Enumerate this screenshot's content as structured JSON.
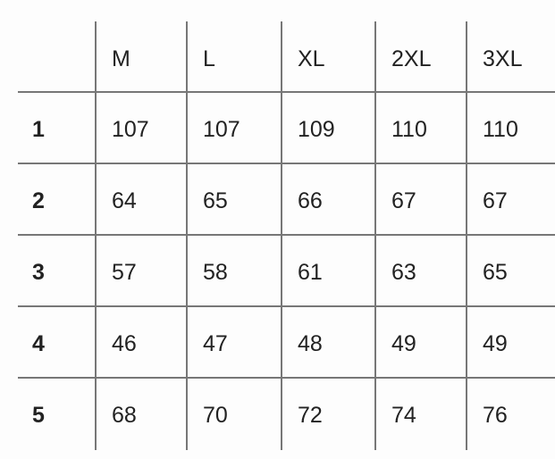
{
  "table": {
    "columns": [
      "M",
      "L",
      "XL",
      "2XL",
      "3XL"
    ],
    "rows": [
      {
        "label": "1",
        "values": [
          "107",
          "107",
          "109",
          "110",
          "110"
        ]
      },
      {
        "label": "2",
        "values": [
          "64",
          "65",
          "66",
          "67",
          "67"
        ]
      },
      {
        "label": "3",
        "values": [
          "57",
          "58",
          "61",
          "63",
          "65"
        ]
      },
      {
        "label": "4",
        "values": [
          "46",
          "47",
          "48",
          "49",
          "49"
        ]
      },
      {
        "label": "5",
        "values": [
          "68",
          "70",
          "72",
          "74",
          "76"
        ]
      }
    ],
    "line_color": "#777777",
    "text_color": "#222222"
  }
}
